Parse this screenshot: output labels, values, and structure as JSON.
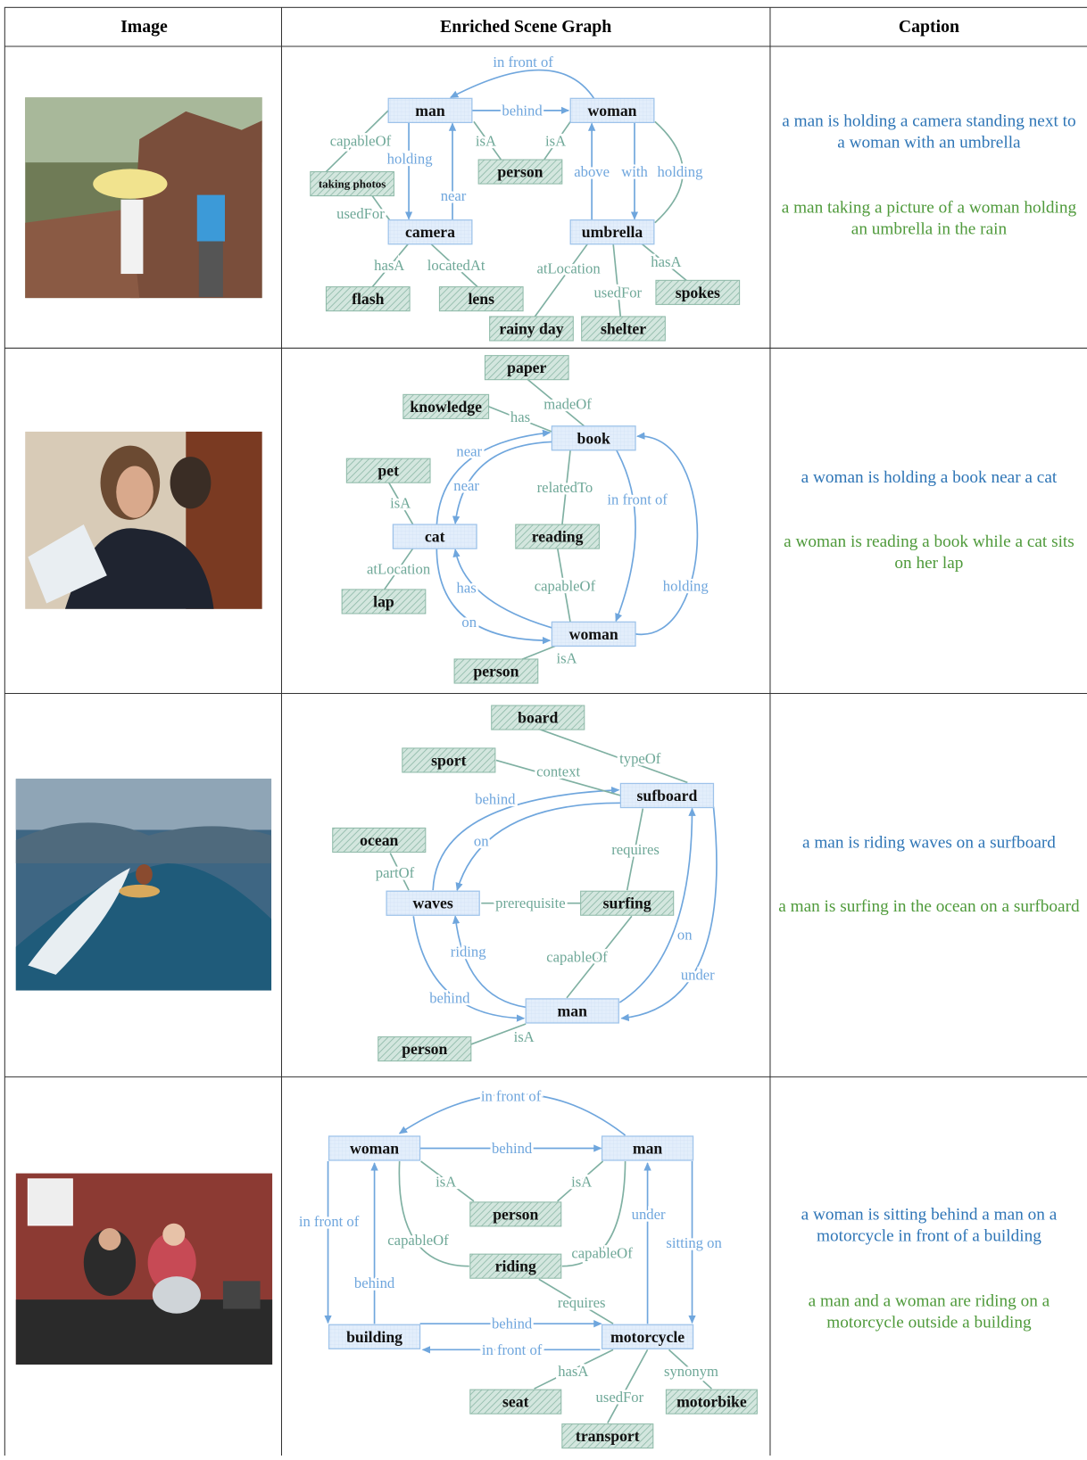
{
  "header": {
    "image": "Image",
    "graph": "Enriched Scene Graph",
    "caption": "Caption"
  },
  "rows": [
    {
      "objects": [
        "man",
        "woman",
        "camera",
        "umbrella"
      ],
      "concepts": [
        "taking photos",
        "person",
        "flash",
        "lens",
        "rainy day",
        "shelter",
        "spokes"
      ],
      "relations": [
        "in front of",
        "behind",
        "holding",
        "near",
        "above",
        "with",
        "holding"
      ],
      "commonsense": [
        "capableOf",
        "isA",
        "isA",
        "usedFor",
        "hasA",
        "locatedAt",
        "atLocation",
        "hasA",
        "usedFor"
      ],
      "captions": [
        "a man is holding a camera standing next to a woman with an umbrella",
        "a man taking a picture of a woman holding an umbrella in the rain"
      ]
    },
    {
      "objects": [
        "book",
        "cat",
        "woman"
      ],
      "concepts": [
        "paper",
        "knowledge",
        "pet",
        "reading",
        "lap",
        "person"
      ],
      "relations": [
        "near",
        "near",
        "in front of",
        "holding",
        "has",
        "on"
      ],
      "commonsense": [
        "has",
        "madeOf",
        "isA",
        "relatedTo",
        "atLocation",
        "capableOf",
        "isA"
      ],
      "captions": [
        "a woman is holding a book near a cat",
        "a woman is reading a book while a cat sits on her lap"
      ]
    },
    {
      "objects": [
        "sufboard",
        "waves",
        "man"
      ],
      "concepts": [
        "board",
        "sport",
        "ocean",
        "surfing",
        "person"
      ],
      "relations": [
        "behind",
        "on",
        "riding",
        "behind",
        "on",
        "under"
      ],
      "commonsense": [
        "typeOf",
        "context",
        "requires",
        "partOf",
        "prerequisite",
        "capableOf",
        "isA"
      ],
      "captions": [
        "a man is riding waves on a surfboard",
        "a man is surfing in the ocean on a surfboard"
      ]
    },
    {
      "objects": [
        "woman",
        "man",
        "building",
        "motorcycle"
      ],
      "concepts": [
        "person",
        "riding",
        "seat",
        "motorbike",
        "transport"
      ],
      "relations": [
        "in front of",
        "behind",
        "in front of",
        "behind",
        "under",
        "sitting on",
        "behind",
        "in front of"
      ],
      "commonsense": [
        "isA",
        "isA",
        "capableOf",
        "capableOf",
        "requires",
        "hasA",
        "usedFor",
        "synonym"
      ],
      "captions": [
        "a woman is sitting behind a man on a motorcycle in front of a building",
        "a man and a woman are riding on a motorcycle outside a building"
      ]
    }
  ]
}
